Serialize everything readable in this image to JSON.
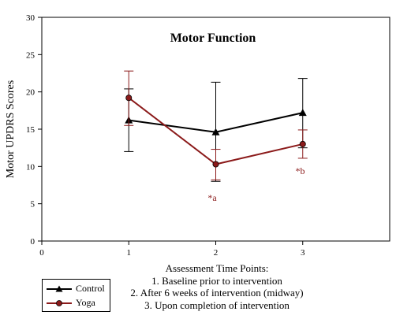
{
  "chart_data": {
    "type": "line",
    "title": "Motor Function",
    "ylabel": "Motor UPDRS Scores",
    "xlim": [
      0,
      4
    ],
    "ylim": [
      0,
      30
    ],
    "x_ticks": [
      0,
      1,
      2,
      3
    ],
    "y_ticks": [
      0,
      5,
      10,
      15,
      20,
      25,
      30
    ],
    "grid": false,
    "legend_position": "bottom-left",
    "xlabel_lines": [
      "Assessment Time Points:",
      "1. Baseline prior to intervention",
      "2. After 6 weeks of intervention (midway)",
      "3. Upon completion of intervention"
    ],
    "series": [
      {
        "name": "Control",
        "color": "#000000",
        "marker": "triangle",
        "x": [
          1,
          2,
          3
        ],
        "y": [
          16.2,
          14.6,
          17.2
        ],
        "err_upper": [
          20.4,
          21.3,
          21.8
        ],
        "err_lower": [
          12.0,
          8.0,
          12.5
        ]
      },
      {
        "name": "Yoga",
        "color": "#8b1a1a",
        "marker": "circle",
        "x": [
          1,
          2,
          3
        ],
        "y": [
          19.2,
          10.3,
          13.0
        ],
        "err_upper": [
          22.8,
          12.3,
          14.9
        ],
        "err_lower": [
          15.5,
          8.2,
          11.1
        ]
      }
    ],
    "annotations": [
      {
        "text": "*a",
        "x": 1.96,
        "y": 5.4,
        "color": "#8b1a1a"
      },
      {
        "text": "*b",
        "x": 2.97,
        "y": 9.0,
        "color": "#8b1a1a"
      }
    ]
  }
}
